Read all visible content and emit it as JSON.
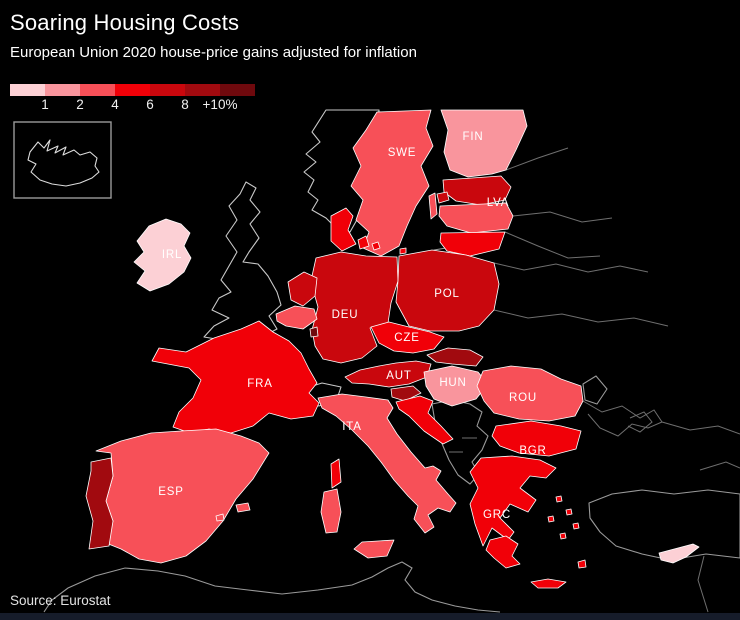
{
  "header": {
    "title": "Soaring Housing Costs",
    "subtitle": "European Union 2020 house-price gains adjusted for inflation"
  },
  "source_label": "Source: Eurostat",
  "accent_colors": {
    "background": "#000000",
    "text": "#ffffff",
    "bottom_bar": "#161c2a",
    "non_eu_outline": "#c9c9c9",
    "eastern_border_lines": "#6f6f6f"
  },
  "chart_data": {
    "type": "heatmap",
    "variant": "choropleth-map",
    "region_shown": "Europe",
    "title": "Soaring Housing Costs",
    "subtitle": "European Union 2020 house-price gains adjusted for inflation",
    "unit": "percent, house-price gain adjusted for inflation",
    "legend": {
      "tick_labels": [
        "1",
        "2",
        "4",
        "6",
        "8",
        "+10%"
      ],
      "bins": [
        "<1",
        "1-2",
        "2-4",
        "4-6",
        "6-8",
        "8-10",
        "10+"
      ],
      "colors": [
        "#fcd0d5",
        "#f9959d",
        "#f75058",
        "#f10008",
        "#c9070d",
        "#a10a0f",
        "#6f090d"
      ],
      "position": "top-left under subtitle"
    },
    "no_data_color": "#000000",
    "no_data_regions": [
      "Iceland (inset box)",
      "United Kingdom",
      "Norway",
      "Switzerland",
      "Western Balkans",
      "Belarus",
      "Ukraine",
      "Moldova",
      "Russia",
      "Turkey",
      "North Africa"
    ],
    "countries": [
      {
        "code": "IRL",
        "name": "Ireland",
        "bin_index": 0,
        "bin": "<1",
        "labeled": true
      },
      {
        "code": "CYP",
        "name": "Cyprus",
        "bin_index": 0,
        "bin": "<1",
        "labeled": false
      },
      {
        "code": "FIN",
        "name": "Finland",
        "bin_index": 1,
        "bin": "1-2",
        "labeled": true
      },
      {
        "code": "HUN",
        "name": "Hungary",
        "bin_index": 1,
        "bin": "1-2",
        "labeled": true
      },
      {
        "code": "SWE",
        "name": "Sweden",
        "bin_index": 2,
        "bin": "2-4",
        "labeled": true
      },
      {
        "code": "LVA",
        "name": "Latvia",
        "bin_index": 2,
        "bin": "2-4",
        "labeled": true
      },
      {
        "code": "ITA",
        "name": "Italy",
        "bin_index": 2,
        "bin": "2-4",
        "labeled": true
      },
      {
        "code": "ESP",
        "name": "Spain",
        "bin_index": 2,
        "bin": "2-4",
        "labeled": true
      },
      {
        "code": "ROU",
        "name": "Romania",
        "bin_index": 2,
        "bin": "2-4",
        "labeled": true
      },
      {
        "code": "BEL",
        "name": "Belgium",
        "bin_index": 2,
        "bin": "2-4",
        "labeled": false
      },
      {
        "code": "FRA",
        "name": "France",
        "bin_index": 3,
        "bin": "4-6",
        "labeled": true
      },
      {
        "code": "CZE",
        "name": "Czechia",
        "bin_index": 3,
        "bin": "4-6",
        "labeled": true
      },
      {
        "code": "DNK",
        "name": "Denmark",
        "bin_index": 3,
        "bin": "4-6",
        "labeled": false
      },
      {
        "code": "LTU",
        "name": "Lithuania",
        "bin_index": 3,
        "bin": "4-6",
        "labeled": false
      },
      {
        "code": "BGR",
        "name": "Bulgaria",
        "bin_index": 3,
        "bin": "4-6",
        "labeled": true
      },
      {
        "code": "GRC",
        "name": "Greece",
        "bin_index": 3,
        "bin": "4-6",
        "labeled": true
      },
      {
        "code": "HRV",
        "name": "Croatia",
        "bin_index": 3,
        "bin": "4-6",
        "labeled": false
      },
      {
        "code": "DEU",
        "name": "Germany",
        "bin_index": 4,
        "bin": "6-8",
        "labeled": true
      },
      {
        "code": "POL",
        "name": "Poland",
        "bin_index": 4,
        "bin": "6-8",
        "labeled": true
      },
      {
        "code": "NLD",
        "name": "Netherlands",
        "bin_index": 4,
        "bin": "6-8",
        "labeled": false
      },
      {
        "code": "EST",
        "name": "Estonia",
        "bin_index": 4,
        "bin": "6-8",
        "labeled": false
      },
      {
        "code": "AUT",
        "name": "Austria",
        "bin_index": 4,
        "bin": "6-8",
        "labeled": true
      },
      {
        "code": "PRT",
        "name": "Portugal",
        "bin_index": 5,
        "bin": "8-10",
        "labeled": false
      },
      {
        "code": "SVK",
        "name": "Slovakia",
        "bin_index": 5,
        "bin": "8-10",
        "labeled": false
      },
      {
        "code": "SVN",
        "name": "Slovenia",
        "bin_index": 5,
        "bin": "8-10",
        "labeled": false
      },
      {
        "code": "LUX",
        "name": "Luxembourg",
        "bin_index": 6,
        "bin": "10+",
        "labeled": true
      }
    ]
  }
}
